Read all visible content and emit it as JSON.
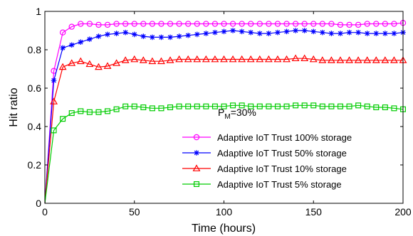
{
  "chart_data": {
    "type": "line",
    "xlabel": "Time (hours)",
    "ylabel": "Hit ratio",
    "xlim": [
      0,
      200
    ],
    "ylim": [
      0,
      1
    ],
    "xticks": [
      0,
      50,
      100,
      150,
      200
    ],
    "yticks": [
      0,
      0.2,
      0.4,
      0.6,
      0.8,
      1
    ],
    "ytick_labels": [
      "0",
      "0.2",
      "0.4",
      "0.6",
      "0.8",
      "1"
    ],
    "grid": false,
    "legend_position": "bottom-right",
    "annotation": {
      "main": "P",
      "sub": "M",
      "rest": "=30%"
    },
    "series": [
      {
        "name": "Adaptive IoT Trust 100% storage",
        "color": "#ff00ff",
        "marker": "circle",
        "x": [
          0,
          5,
          10,
          15,
          20,
          25,
          30,
          35,
          40,
          45,
          50,
          55,
          60,
          65,
          70,
          75,
          80,
          85,
          90,
          95,
          100,
          105,
          110,
          115,
          120,
          125,
          130,
          135,
          140,
          145,
          150,
          155,
          160,
          165,
          170,
          175,
          180,
          185,
          190,
          195,
          200
        ],
        "y": [
          0,
          0.69,
          0.89,
          0.92,
          0.935,
          0.935,
          0.93,
          0.93,
          0.935,
          0.935,
          0.935,
          0.935,
          0.935,
          0.935,
          0.935,
          0.935,
          0.935,
          0.935,
          0.935,
          0.935,
          0.935,
          0.935,
          0.935,
          0.935,
          0.935,
          0.935,
          0.935,
          0.935,
          0.935,
          0.935,
          0.935,
          0.935,
          0.935,
          0.93,
          0.93,
          0.93,
          0.935,
          0.935,
          0.935,
          0.935,
          0.94
        ]
      },
      {
        "name": "Adaptive IoT Trust 50% storage",
        "color": "#0000ff",
        "marker": "asterisk",
        "x": [
          0,
          5,
          10,
          15,
          20,
          25,
          30,
          35,
          40,
          45,
          50,
          55,
          60,
          65,
          70,
          75,
          80,
          85,
          90,
          95,
          100,
          105,
          110,
          115,
          120,
          125,
          130,
          135,
          140,
          145,
          150,
          155,
          160,
          165,
          170,
          175,
          180,
          185,
          190,
          195,
          200
        ],
        "y": [
          0,
          0.64,
          0.81,
          0.825,
          0.84,
          0.855,
          0.87,
          0.88,
          0.885,
          0.89,
          0.88,
          0.87,
          0.865,
          0.865,
          0.865,
          0.87,
          0.875,
          0.88,
          0.885,
          0.89,
          0.895,
          0.9,
          0.895,
          0.89,
          0.885,
          0.885,
          0.89,
          0.895,
          0.9,
          0.9,
          0.895,
          0.89,
          0.885,
          0.885,
          0.89,
          0.89,
          0.885,
          0.885,
          0.885,
          0.885,
          0.89
        ]
      },
      {
        "name": "Adaptive IoT Trust 10% storage",
        "color": "#ff0000",
        "marker": "triangle",
        "x": [
          0,
          5,
          10,
          15,
          20,
          25,
          30,
          35,
          40,
          45,
          50,
          55,
          60,
          65,
          70,
          75,
          80,
          85,
          90,
          95,
          100,
          105,
          110,
          115,
          120,
          125,
          130,
          135,
          140,
          145,
          150,
          155,
          160,
          165,
          170,
          175,
          180,
          185,
          190,
          195,
          200
        ],
        "y": [
          0,
          0.53,
          0.71,
          0.73,
          0.74,
          0.725,
          0.71,
          0.715,
          0.73,
          0.745,
          0.75,
          0.745,
          0.74,
          0.74,
          0.745,
          0.75,
          0.75,
          0.75,
          0.75,
          0.75,
          0.75,
          0.75,
          0.75,
          0.75,
          0.75,
          0.75,
          0.75,
          0.75,
          0.755,
          0.755,
          0.75,
          0.745,
          0.745,
          0.745,
          0.745,
          0.745,
          0.745,
          0.745,
          0.745,
          0.745,
          0.745
        ]
      },
      {
        "name": "Adaptive IoT Trust 5% storage",
        "color": "#00cc00",
        "marker": "square",
        "x": [
          0,
          5,
          10,
          15,
          20,
          25,
          30,
          35,
          40,
          45,
          50,
          55,
          60,
          65,
          70,
          75,
          80,
          85,
          90,
          95,
          100,
          105,
          110,
          115,
          120,
          125,
          130,
          135,
          140,
          145,
          150,
          155,
          160,
          165,
          170,
          175,
          180,
          185,
          190,
          195,
          200
        ],
        "y": [
          0,
          0.38,
          0.44,
          0.47,
          0.48,
          0.475,
          0.475,
          0.48,
          0.49,
          0.505,
          0.505,
          0.5,
          0.495,
          0.495,
          0.5,
          0.505,
          0.505,
          0.505,
          0.505,
          0.505,
          0.505,
          0.51,
          0.51,
          0.505,
          0.505,
          0.505,
          0.505,
          0.505,
          0.51,
          0.51,
          0.51,
          0.505,
          0.505,
          0.505,
          0.505,
          0.51,
          0.505,
          0.5,
          0.5,
          0.495,
          0.49
        ]
      }
    ]
  }
}
